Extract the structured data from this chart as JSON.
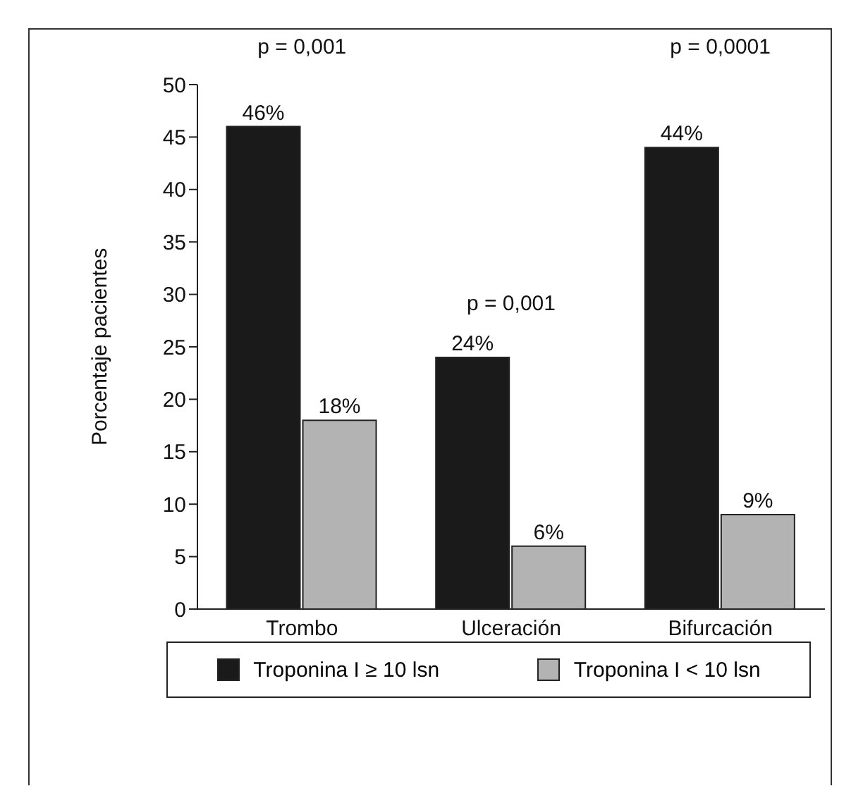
{
  "chart_data": {
    "type": "bar",
    "categories": [
      "Trombo",
      "Ulceración",
      "Bifurcación"
    ],
    "series": [
      {
        "name": "Troponina  I ≥ 10 lsn",
        "color": "#1a1a1a",
        "values": [
          46,
          24,
          44
        ],
        "value_labels": [
          "46%",
          "24%",
          "44%"
        ]
      },
      {
        "name": "Troponina  I < 10 lsn",
        "color": "#b3b3b3",
        "values": [
          18,
          6,
          9
        ],
        "value_labels": [
          "18%",
          "6%",
          "9%"
        ]
      }
    ],
    "ylabel": "Porcentaje pacientes",
    "ylim": [
      0,
      50
    ],
    "yticks": [
      0,
      5,
      10,
      15,
      20,
      25,
      30,
      35,
      40,
      45,
      50
    ],
    "annotations": [
      "p = 0,001",
      "p = 0,001",
      "p = 0,0001"
    ],
    "grid": false,
    "legend": "bottom"
  }
}
